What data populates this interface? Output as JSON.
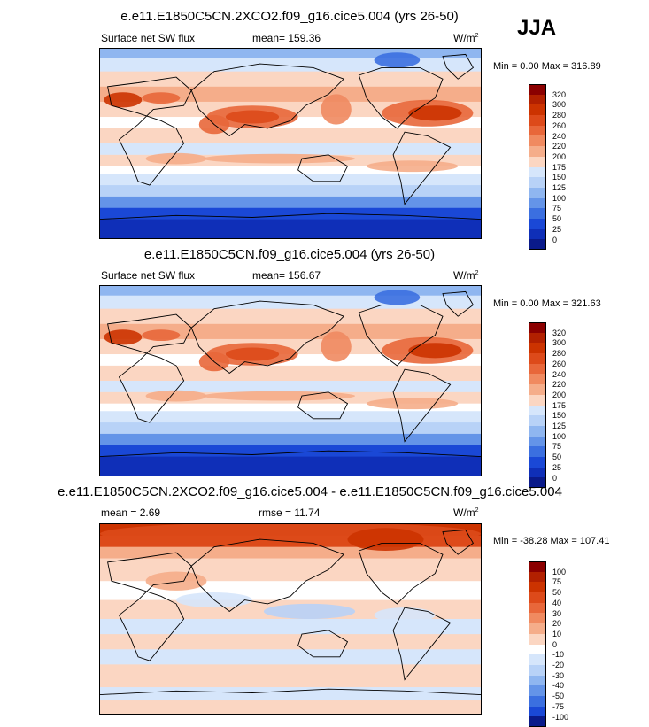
{
  "season": "JJA",
  "panels": [
    {
      "title": "e.e11.E1850C5CN.2XCO2.f09_g16.cice5.004 (yrs 26-50)",
      "left_label": "Surface net SW flux",
      "mid_label": "mean= 159.36",
      "units": "W/m",
      "units_sup": "2",
      "minmax": "Min =   0.00 Max = 316.89",
      "kind": "abs",
      "colorbar_levels": [
        "320",
        "300",
        "280",
        "260",
        "240",
        "220",
        "200",
        "175",
        "150",
        "125",
        "100",
        "75",
        "50",
        "25",
        "0"
      ]
    },
    {
      "title": "e.e11.E1850C5CN.f09_g16.cice5.004 (yrs 26-50)",
      "left_label": "Surface net SW flux",
      "mid_label": "mean= 156.67",
      "units": "W/m",
      "units_sup": "2",
      "minmax": "Min =   0.00 Max = 321.63",
      "kind": "abs",
      "colorbar_levels": [
        "320",
        "300",
        "280",
        "260",
        "240",
        "220",
        "200",
        "175",
        "150",
        "125",
        "100",
        "75",
        "50",
        "25",
        "0"
      ]
    },
    {
      "title": "e.e11.E1850C5CN.2XCO2.f09_g16.cice5.004 - e.e11.E1850C5CN.f09_g16.cice5.004",
      "left_label": "mean =   2.69",
      "mid_label": "rmse =  11.74",
      "units": "W/m",
      "units_sup": "2",
      "minmax": "Min = -38.28 Max = 107.41",
      "kind": "diff",
      "colorbar_levels": [
        "100",
        "75",
        "50",
        "40",
        "30",
        "20",
        "10",
        "0",
        "-10",
        "-20",
        "-30",
        "-40",
        "-50",
        "-75",
        "-100"
      ]
    }
  ],
  "colors": {
    "abs_palette": [
      "#8b0000",
      "#b22000",
      "#cc3300",
      "#dd4a1a",
      "#e8673a",
      "#f08a60",
      "#f5ad8a",
      "#fbd6c2",
      "#ffffff",
      "#d6e6fb",
      "#b8d2f7",
      "#8fb6f0",
      "#6494e8",
      "#3b6fe0",
      "#1a48d6",
      "#0f2fb8",
      "#0a1a8a"
    ],
    "diff_palette": [
      "#8b0000",
      "#b22000",
      "#cc3300",
      "#dd4a1a",
      "#e8673a",
      "#f08a60",
      "#f5ad8a",
      "#fbd6c2",
      "#ffffff",
      "#d6e6fb",
      "#b8d2f7",
      "#8fb6f0",
      "#6494e8",
      "#3b6fe0",
      "#1a48d6",
      "#0f2fb8",
      "#0a1a8a"
    ]
  },
  "chart_data": [
    {
      "type": "heatmap",
      "title": "e.e11.E1850C5CN.2XCO2.f09_g16.cice5.004 (yrs 26-50)",
      "variable": "Surface net SW flux",
      "units": "W/m2",
      "mean": 159.36,
      "min": 0.0,
      "max": 316.89,
      "levels": [
        0,
        25,
        50,
        75,
        100,
        125,
        150,
        175,
        200,
        220,
        240,
        260,
        280,
        300,
        320
      ]
    },
    {
      "type": "heatmap",
      "title": "e.e11.E1850C5CN.f09_g16.cice5.004 (yrs 26-50)",
      "variable": "Surface net SW flux",
      "units": "W/m2",
      "mean": 156.67,
      "min": 0.0,
      "max": 321.63,
      "levels": [
        0,
        25,
        50,
        75,
        100,
        125,
        150,
        175,
        200,
        220,
        240,
        260,
        280,
        300,
        320
      ]
    },
    {
      "type": "heatmap",
      "title": "e.e11.E1850C5CN.2XCO2.f09_g16.cice5.004 - e.e11.E1850C5CN.f09_g16.cice5.004",
      "units": "W/m2",
      "mean": 2.69,
      "rmse": 11.74,
      "min": -38.28,
      "max": 107.41,
      "levels": [
        -100,
        -75,
        -50,
        -40,
        -30,
        -20,
        -10,
        0,
        10,
        20,
        30,
        40,
        50,
        75,
        100
      ]
    }
  ]
}
